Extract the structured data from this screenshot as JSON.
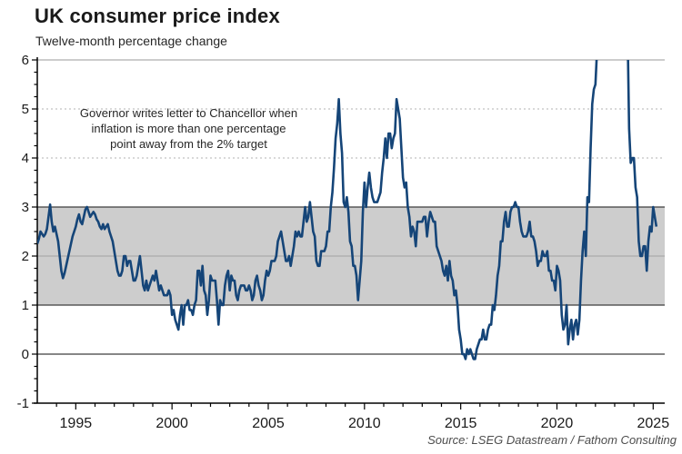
{
  "chart_data": {
    "type": "line",
    "title": "UK consumer price index",
    "subtitle": "Twelve-month percentage change",
    "source": "Source: LSEG Datastream / Fathom Consulting",
    "annotation": {
      "line1": "Governor writes letter to Chancellor when",
      "line2": "inflation is more than one percentage",
      "line3": "point away from the 2% target"
    },
    "xlabel": "",
    "ylabel": "",
    "x_range": [
      1993,
      2025.6
    ],
    "y_range": [
      -1,
      6
    ],
    "x_ticks_major": [
      1995,
      2000,
      2005,
      2010,
      2015,
      2020,
      2025
    ],
    "x_minor_tick_step_years": 1,
    "y_ticks": [
      6,
      5,
      4,
      3,
      2,
      1,
      0,
      -1
    ],
    "y_minor_tick_step": 0.25,
    "grid": "horizontal only; dotted at 4 and 5, solid emphasis at 0 and at band edges 1 and 3",
    "legend": "none",
    "clip_above": 6,
    "target_band": {
      "from": 1,
      "to": 3,
      "fill": "#cdcdcd",
      "edge_color": "#3d3d3d",
      "meaning": "2% target plus/minus one percentage point"
    },
    "colors": {
      "line": "#154578",
      "band": "#cdcdcd",
      "band_edge": "#3d3d3d",
      "zero_line": "#3d3d3d",
      "axis": "#000000",
      "dotted_grid": "#b3b3b3",
      "source_text": "#4d4d4d"
    },
    "series": [
      {
        "name": "UK CPI, twelve-month percentage change",
        "frequency": "monthly",
        "start": "1993-01",
        "end": "2025-03",
        "values": [
          2.25,
          2.35,
          2.5,
          2.45,
          2.4,
          2.45,
          2.55,
          2.8,
          3.05,
          2.7,
          2.5,
          2.6,
          2.45,
          2.3,
          2.0,
          1.7,
          1.55,
          1.65,
          1.8,
          1.95,
          2.1,
          2.25,
          2.4,
          2.5,
          2.6,
          2.75,
          2.85,
          2.7,
          2.65,
          2.8,
          2.95,
          3.0,
          2.9,
          2.8,
          2.85,
          2.9,
          2.85,
          2.75,
          2.7,
          2.6,
          2.55,
          2.65,
          2.55,
          2.6,
          2.65,
          2.5,
          2.4,
          2.3,
          2.1,
          1.9,
          1.7,
          1.6,
          1.6,
          1.7,
          2.0,
          2.0,
          1.8,
          1.9,
          1.9,
          1.7,
          1.5,
          1.5,
          1.6,
          1.8,
          2.0,
          1.7,
          1.4,
          1.3,
          1.5,
          1.3,
          1.4,
          1.5,
          1.6,
          1.5,
          1.7,
          1.5,
          1.3,
          1.4,
          1.3,
          1.2,
          1.2,
          1.2,
          1.3,
          1.2,
          0.8,
          0.9,
          0.7,
          0.6,
          0.5,
          0.8,
          1.0,
          0.6,
          1.0,
          1.0,
          1.1,
          0.9,
          0.9,
          0.8,
          1.0,
          1.1,
          1.7,
          1.7,
          1.4,
          1.8,
          1.3,
          1.2,
          0.8,
          1.1,
          1.6,
          1.5,
          1.5,
          1.5,
          1.1,
          0.6,
          1.1,
          1.0,
          1.0,
          1.4,
          1.6,
          1.7,
          1.3,
          1.6,
          1.5,
          1.5,
          1.2,
          1.1,
          1.3,
          1.4,
          1.4,
          1.4,
          1.3,
          1.3,
          1.4,
          1.3,
          1.1,
          1.2,
          1.5,
          1.6,
          1.4,
          1.3,
          1.1,
          1.2,
          1.5,
          1.7,
          1.6,
          1.7,
          1.9,
          1.9,
          1.9,
          2.0,
          2.3,
          2.4,
          2.5,
          2.3,
          2.1,
          1.9,
          1.9,
          2.0,
          1.8,
          2.0,
          2.2,
          2.5,
          2.4,
          2.5,
          2.4,
          2.4,
          2.7,
          3.0,
          2.7,
          2.8,
          3.1,
          2.8,
          2.5,
          2.4,
          1.9,
          1.8,
          1.8,
          2.1,
          2.1,
          2.1,
          2.2,
          2.5,
          2.5,
          3.0,
          3.3,
          3.8,
          4.4,
          4.7,
          5.2,
          4.5,
          4.1,
          3.1,
          3.0,
          3.2,
          2.9,
          2.3,
          2.2,
          1.8,
          1.8,
          1.6,
          1.1,
          1.5,
          1.9,
          2.9,
          3.5,
          3.0,
          3.4,
          3.7,
          3.4,
          3.2,
          3.1,
          3.1,
          3.1,
          3.2,
          3.3,
          3.7,
          4.0,
          4.4,
          4.0,
          4.5,
          4.5,
          4.2,
          4.4,
          4.5,
          5.2,
          5.0,
          4.8,
          4.2,
          3.6,
          3.4,
          3.5,
          3.0,
          2.8,
          2.4,
          2.6,
          2.5,
          2.2,
          2.7,
          2.7,
          2.7,
          2.7,
          2.8,
          2.8,
          2.4,
          2.7,
          2.9,
          2.8,
          2.7,
          2.7,
          2.2,
          2.1,
          2.0,
          1.9,
          1.7,
          1.6,
          1.8,
          1.5,
          1.9,
          1.6,
          1.5,
          1.2,
          1.3,
          1.0,
          0.5,
          0.3,
          0.0,
          0.0,
          -0.1,
          0.1,
          0.0,
          0.1,
          0.0,
          -0.1,
          -0.1,
          0.1,
          0.2,
          0.3,
          0.3,
          0.5,
          0.3,
          0.3,
          0.5,
          0.6,
          0.6,
          1.0,
          0.9,
          1.2,
          1.6,
          1.8,
          2.3,
          2.3,
          2.7,
          2.9,
          2.6,
          2.6,
          2.9,
          3.0,
          3.0,
          3.1,
          3.0,
          3.0,
          2.7,
          2.5,
          2.4,
          2.4,
          2.4,
          2.5,
          2.7,
          2.4,
          2.4,
          2.3,
          2.1,
          1.8,
          1.9,
          1.9,
          2.1,
          2.0,
          2.0,
          2.1,
          1.7,
          1.7,
          1.5,
          1.5,
          1.3,
          1.8,
          1.7,
          1.5,
          0.8,
          0.5,
          0.6,
          1.0,
          0.2,
          0.5,
          0.7,
          0.3,
          0.6,
          0.7,
          0.4,
          0.7,
          1.5,
          2.1,
          2.5,
          2.0,
          3.2,
          3.1,
          4.2,
          5.1,
          5.4,
          5.5,
          6.2,
          7.0,
          9.0,
          9.1,
          9.4,
          10.1,
          9.9,
          10.1,
          11.1,
          10.7,
          10.5,
          10.1,
          10.4,
          10.1,
          8.7,
          8.7,
          7.9,
          6.8,
          6.7,
          6.7,
          4.6,
          3.9,
          4.0,
          4.0,
          3.4,
          3.2,
          2.3,
          2.0,
          2.0,
          2.2,
          2.2,
          1.7,
          2.3,
          2.6,
          2.5,
          3.0,
          2.8,
          2.6
        ]
      }
    ]
  }
}
